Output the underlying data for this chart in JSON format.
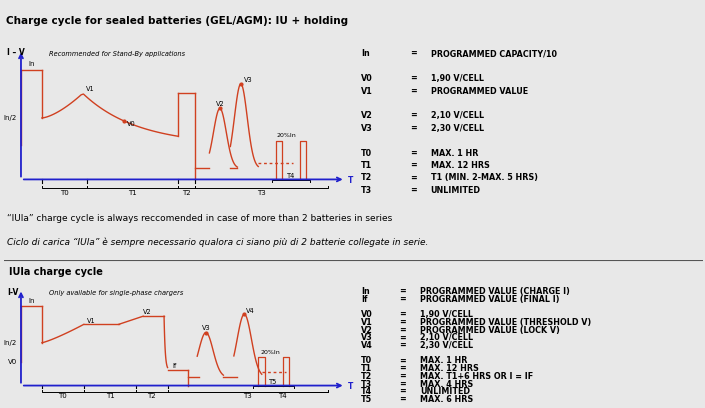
{
  "bg_color": "#e8e8e8",
  "chart_bg": "#e8e8e8",
  "white": "#ffffff",
  "red_color": "#d04020",
  "blue_color": "#2020cc",
  "title1": "Charge cycle for sealed batteries (GEL/AGM): IU + holding",
  "subtitle1": "Recommended for Stand-By applications",
  "ylabel1": "I – V",
  "title2": "IUla charge cycle",
  "subtitle2": "Only available for single-phase chargers",
  "ylabel2": "I-V",
  "params1": [
    [
      "In",
      "=",
      "PROGRAMMED CAPACITY/10"
    ],
    [
      "",
      "",
      ""
    ],
    [
      "V0",
      "=",
      "1,90 V/CELL"
    ],
    [
      "V1",
      "=",
      "PROGRAMMED VALUE"
    ],
    [
      "",
      "",
      ""
    ],
    [
      "V2",
      "=",
      "2,10 V/CELL"
    ],
    [
      "V3",
      "=",
      "2,30 V/CELL"
    ],
    [
      "",
      "",
      ""
    ],
    [
      "T0",
      "=",
      "MAX. 1 HR"
    ],
    [
      "T1",
      "=",
      "MAX. 12 HRS"
    ],
    [
      "T2",
      "=",
      "T1 (MIN. 2-MAX. 5 HRS)"
    ],
    [
      "T3",
      "=",
      "UNLIMITED"
    ]
  ],
  "params2": [
    [
      "In",
      "=",
      "PROGRAMMED VALUE (CHARGE I)"
    ],
    [
      "If",
      "=",
      "PROGRAMMED VALUE (FINAL I)"
    ],
    [
      "",
      "",
      ""
    ],
    [
      "V0",
      "=",
      "1,90 V/CELL"
    ],
    [
      "V1",
      "=",
      "PROGRAMMED VALUE (THRESHOLD V)"
    ],
    [
      "V2",
      "=",
      "PROGRAMMED VALUE (LOCK V)"
    ],
    [
      "V3",
      "=",
      "2,10 V/CELL"
    ],
    [
      "V4",
      "=",
      "2,30 V/CELL"
    ],
    [
      "",
      "",
      ""
    ],
    [
      "T0",
      "=",
      "MAX. 1 HR"
    ],
    [
      "T1",
      "=",
      "MAX. 12 HRS"
    ],
    [
      "T2",
      "=",
      "MAX. T1+6 HRS OR I = IF"
    ],
    [
      "T3",
      "=",
      "MAX. 4 HRS"
    ],
    [
      "T4",
      "=",
      "UNLIMITED"
    ],
    [
      "T5",
      "=",
      "MAX. 6 HRS"
    ]
  ],
  "middle_text1": "“IUla” charge cycle is always reccomended in case of more than 2 batteries in series",
  "middle_text2": "Ciclo di carica “IUla” è sempre necessario qualora ci siano più di 2 batterie collegate in serie."
}
